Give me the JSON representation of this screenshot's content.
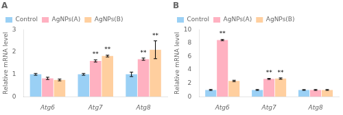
{
  "chart_data": [
    {
      "type": "bar",
      "title": "A",
      "ylabel": "Relative mRNA level",
      "categories": [
        "Atg6",
        "Atg7",
        "Atg8"
      ],
      "series": [
        {
          "name": "Control",
          "values": [
            1.0,
            1.0,
            1.0
          ],
          "errors": [
            0.04,
            0.04,
            0.1
          ]
        },
        {
          "name": "AgNPs(A)",
          "values": [
            0.82,
            1.6,
            1.68
          ],
          "errors": [
            0.05,
            0.05,
            0.05
          ]
        },
        {
          "name": "AgNPs(B)",
          "values": [
            0.75,
            1.82,
            2.1
          ],
          "errors": [
            0.04,
            0.04,
            0.4
          ]
        }
      ],
      "annotations": [
        {
          "text": "**",
          "series": "AgNPs(A)",
          "category": "Atg7"
        },
        {
          "text": "**",
          "series": "AgNPs(A)",
          "category": "Atg8"
        },
        {
          "text": "**",
          "series": "AgNPs(B)",
          "category": "Atg7"
        },
        {
          "text": "**",
          "series": "AgNPs(B)",
          "category": "Atg8"
        }
      ],
      "ylim": [
        0,
        3.0
      ],
      "yticks": [
        0,
        1,
        2,
        3
      ],
      "grid": false,
      "legend": "upper left"
    },
    {
      "type": "bar",
      "title": "B",
      "ylabel": "Relative mRNA level",
      "categories": [
        "Atg6",
        "Atg7",
        "Atg8"
      ],
      "series": [
        {
          "name": "Control",
          "values": [
            1.0,
            1.0,
            1.0
          ],
          "errors": [
            0.08,
            0.07,
            0.06
          ]
        },
        {
          "name": "AgNPs(A)",
          "values": [
            8.45,
            2.65,
            1.0
          ],
          "errors": [
            0.1,
            0.08,
            0.07
          ]
        },
        {
          "name": "AgNPs(B)",
          "values": [
            2.35,
            2.7,
            1.0
          ],
          "errors": [
            0.1,
            0.1,
            0.07
          ]
        }
      ],
      "annotations": [
        {
          "text": "**",
          "series": "AgNPs(A)",
          "category": "Atg6"
        },
        {
          "text": "**",
          "series": "AgNPs(A)",
          "category": "Atg7"
        },
        {
          "text": "**",
          "series": "AgNPs(B)",
          "category": "Atg7"
        }
      ],
      "ylim": [
        0,
        10.0
      ],
      "yticks": [
        0,
        2,
        4,
        6,
        8,
        10
      ],
      "grid": false,
      "legend": "upper left"
    }
  ]
}
